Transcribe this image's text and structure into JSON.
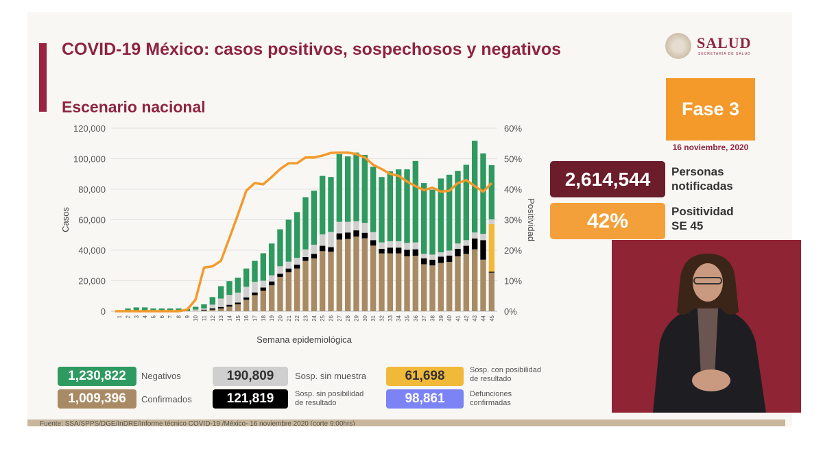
{
  "title": "COVID-19 México: casos positivos, sospechosos y negativos",
  "subtitle": "Escenario nacional",
  "logo": {
    "text": "SALUD",
    "subtext": "SECRETARÍA DE SALUD"
  },
  "phase": "Fase 3",
  "date": "16 noviembre, 2020",
  "kpis": [
    {
      "value": "2,614,544",
      "label_1": "Personas",
      "label_2": "notificadas",
      "color": "#6b1d2c"
    },
    {
      "value": "42%",
      "label_1": "Positividad",
      "label_2": "SE 45",
      "color": "#f3a03a"
    }
  ],
  "legend": [
    {
      "value": "1,230,822",
      "label_1": "Negativos",
      "label_2": "",
      "color": "#2e9960"
    },
    {
      "value": "190,809",
      "label_1": "Sosp. sin muestra",
      "label_2": "",
      "color": "#cfcfcf"
    },
    {
      "value": "61,698",
      "label_1": "Sosp. con posibilidad",
      "label_2": "de resultado",
      "color": "#f0b93a"
    },
    {
      "value": "1,009,396",
      "label_1": "Confirmados",
      "label_2": "",
      "color": "#a88b64"
    },
    {
      "value": "121,819",
      "label_1": "Sosp. sin posibilidad",
      "label_2": "de resultado",
      "color": "#000000"
    },
    {
      "value": "98,861",
      "label_1": "Defunciones",
      "label_2": "confirmadas",
      "color": "#7b83f5"
    }
  ],
  "footer": "Fuente: SSA/SPPS/DGE/InDRE/Informe técnico COVID-19 /México- 16 noviembre 2020 (corte 9:00hrs)",
  "chart_data": {
    "type": "bar",
    "stacked": true,
    "xlabel": "Semana epidemiológica",
    "ylabel": "Casos",
    "y2label": "Positividad",
    "ylim": [
      0,
      120000
    ],
    "y2lim": [
      0,
      60
    ],
    "yticks": [
      "0",
      "20,000",
      "40,000",
      "60,000",
      "80,000",
      "100,000",
      "120,000"
    ],
    "y2ticks": [
      "0%",
      "10%",
      "20%",
      "30%",
      "40%",
      "50%",
      "60%"
    ],
    "grid": true,
    "categories": [
      "1",
      "2",
      "3",
      "4",
      "5",
      "6",
      "7",
      "8",
      "9",
      "10",
      "11",
      "12",
      "13",
      "14",
      "15",
      "16",
      "17",
      "18",
      "19",
      "20",
      "21",
      "22",
      "23",
      "24",
      "25",
      "26",
      "27",
      "28",
      "29",
      "30",
      "31",
      "32",
      "33",
      "34",
      "35",
      "36",
      "37",
      "38",
      "39",
      "40",
      "41",
      "42",
      "43",
      "44",
      "45"
    ],
    "series": [
      {
        "name": "Confirmados",
        "color": "#a88b64",
        "values": [
          0,
          0,
          0,
          0,
          0,
          0,
          0,
          0,
          0,
          300,
          500,
          1000,
          1800,
          3000,
          4500,
          7500,
          10500,
          13500,
          17000,
          22500,
          25500,
          28000,
          33000,
          34600,
          39400,
          39000,
          47000,
          47400,
          48900,
          47800,
          43000,
          37900,
          37900,
          37900,
          36000,
          36400,
          30800,
          30000,
          31600,
          32300,
          36000,
          37600,
          40600,
          33800,
          25300
        ]
      },
      {
        "name": "Sosp. sin posibilidad de resultado",
        "color": "#000000",
        "values": [
          0,
          0,
          0,
          0,
          0,
          0,
          0,
          0,
          0,
          0,
          500,
          800,
          1000,
          1200,
          1200,
          1500,
          1800,
          2000,
          2500,
          2000,
          2500,
          2500,
          2500,
          3000,
          3500,
          3000,
          4000,
          4200,
          4100,
          3600,
          3600,
          3000,
          3800,
          3800,
          4300,
          4200,
          3800,
          3800,
          4200,
          4200,
          4900,
          5300,
          7100,
          12800,
          600
        ]
      },
      {
        "name": "Sosp. con posibilidad de resultado",
        "color": "#f0b93a",
        "values": [
          0,
          0,
          0,
          0,
          0,
          0,
          0,
          0,
          0,
          0,
          0,
          0,
          0,
          0,
          0,
          0,
          0,
          0,
          0,
          0,
          0,
          0,
          0,
          0,
          0,
          0,
          0,
          0,
          0,
          0,
          0,
          0,
          0,
          0,
          0,
          0,
          0,
          0,
          0,
          0,
          0,
          0,
          0,
          0,
          31200
        ]
      },
      {
        "name": "Sosp. sin muestra",
        "color": "#cfcfcf",
        "values": [
          0,
          0,
          0,
          0,
          0,
          0,
          0,
          0,
          0,
          800,
          800,
          2500,
          5500,
          6500,
          6500,
          7000,
          7000,
          4500,
          4000,
          5000,
          4500,
          4500,
          5000,
          6000,
          7500,
          10000,
          7600,
          7000,
          6000,
          6500,
          5300,
          4200,
          4200,
          4200,
          4500,
          4500,
          3000,
          3300,
          2800,
          3300,
          3500,
          3700,
          3900,
          4100,
          3100
        ]
      },
      {
        "name": "Negativos",
        "color": "#2e9960",
        "values": [
          700,
          1800,
          2500,
          2500,
          1800,
          1800,
          1800,
          1800,
          1500,
          1800,
          2700,
          5000,
          8100,
          9000,
          9800,
          12000,
          13700,
          18000,
          20900,
          24200,
          27500,
          30000,
          34200,
          35400,
          38300,
          36000,
          44400,
          42900,
          45000,
          44600,
          42800,
          42900,
          45800,
          47100,
          48200,
          53400,
          46400,
          42600,
          48400,
          49700,
          47600,
          49400,
          60100,
          52800,
          35600
        ]
      }
    ],
    "line": {
      "name": "Positividad",
      "axis": "right",
      "color": "#f39a2b",
      "values": [
        0,
        0,
        0,
        0,
        0,
        0,
        0,
        0,
        0.5,
        3.8,
        14.3,
        14.7,
        16.5,
        24,
        31.6,
        39.5,
        42,
        41.6,
        44,
        46.6,
        48.5,
        48.5,
        50.4,
        50.4,
        51,
        51.9,
        52,
        52,
        51.5,
        50.4,
        48,
        46.6,
        45,
        44.4,
        42.5,
        41,
        39.7,
        40.5,
        39.2,
        39.5,
        42,
        43,
        41,
        39.2,
        42
      ]
    }
  }
}
